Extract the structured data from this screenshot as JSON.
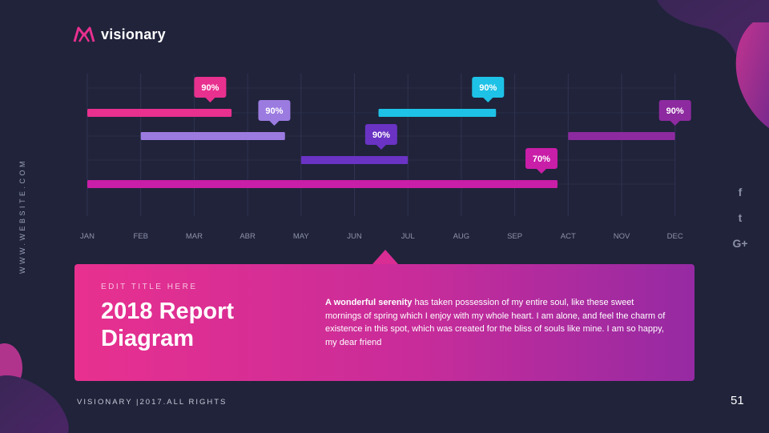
{
  "brand": {
    "name": "visionary"
  },
  "sidebar": {
    "website": "WWW.WEBSITE.COM"
  },
  "social": [
    {
      "icon": "facebook-icon",
      "glyph": "f"
    },
    {
      "icon": "twitter-icon",
      "glyph": "t"
    },
    {
      "icon": "google-plus-icon",
      "glyph": "G+"
    }
  ],
  "chart_data": {
    "type": "gantt",
    "title": "",
    "xlabel": "",
    "ylabel": "",
    "categories": [
      "JAN",
      "FEB",
      "MAR",
      "ABR",
      "MAY",
      "JUN",
      "JUL",
      "AUG",
      "SEP",
      "ACT",
      "NOV",
      "DEC"
    ],
    "grid": true,
    "rows": [
      {
        "bars": [
          {
            "start": 0,
            "end": 2.7,
            "label": "90%",
            "label_at": 2.3,
            "color": "#e8308f"
          },
          {
            "start": 5.45,
            "end": 7.65,
            "label": "90%",
            "label_at": 7.5,
            "color": "#1ec2e6"
          }
        ]
      },
      {
        "bars": [
          {
            "start": 1.0,
            "end": 3.7,
            "label": "90%",
            "label_at": 3.5,
            "color": "#9b7be0"
          },
          {
            "start": 9.0,
            "end": 11.0,
            "label": "90%",
            "label_at": 11.0,
            "color": "#8d2aa0"
          }
        ]
      },
      {
        "bars": [
          {
            "start": 4.0,
            "end": 6.0,
            "label": "90%",
            "label_at": 5.5,
            "color": "#6a33c4"
          }
        ]
      },
      {
        "bars": [
          {
            "start": 0,
            "end": 8.8,
            "label": "70%",
            "label_at": 8.5,
            "color": "#c81ea8"
          }
        ]
      }
    ]
  },
  "card": {
    "kicker": "EDIT TITLE HERE",
    "title": "2018 Report Diagram",
    "body_strong": "A wonderful serenity",
    "body_rest": " has taken possession of my entire soul, like these sweet mornings of spring which I enjoy with my whole heart. I am alone, and feel the charm of existence in this spot, which was created for the bliss of souls like mine. I am so happy, my dear friend"
  },
  "footer": {
    "text": "VISIONARY |2017.ALL RIGHTS"
  },
  "page": {
    "number": "51"
  },
  "colors": {
    "background": "#20233a",
    "pink": "#e8308f",
    "cyan": "#1ec2e6",
    "lavender": "#9b7be0",
    "purple": "#6a33c4",
    "plum": "#8d2aa0",
    "magenta": "#c81ea8"
  }
}
